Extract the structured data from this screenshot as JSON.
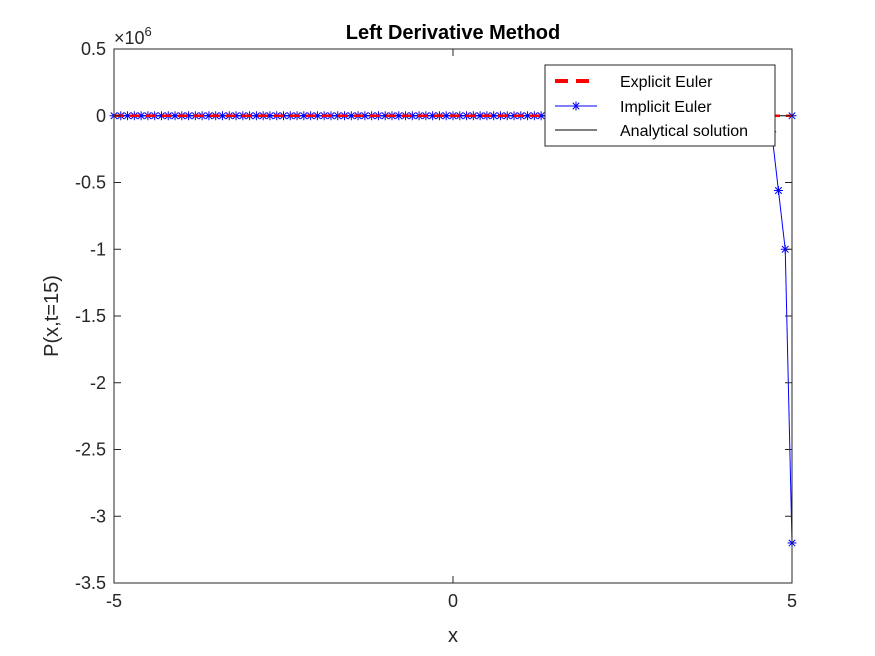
{
  "chart_data": {
    "type": "line",
    "title": "Left Derivative Method",
    "xlabel": "x",
    "ylabel": "P(x,t=15)",
    "scale_exponent_label": "×10",
    "scale_exponent_power": "6",
    "xlim": [
      -5,
      5
    ],
    "ylim": [
      -3.5,
      0.5
    ],
    "xticks": [
      -5,
      0,
      5
    ],
    "yticks": [
      0.5,
      0,
      -0.5,
      -1,
      -1.5,
      -2,
      -2.5,
      -3,
      -3.5
    ],
    "xtick_labels": [
      "-5",
      "0",
      "5"
    ],
    "ytick_labels": [
      "0.5",
      "0",
      "-0.5",
      "-1",
      "-1.5",
      "-2",
      "-2.5",
      "-3",
      "-3.5"
    ],
    "grid": false,
    "legend_position": "top-right",
    "series": [
      {
        "name": "Explicit Euler",
        "color": "#ff0000",
        "style": "dashed",
        "x": [
          -5,
          5
        ],
        "y": [
          0,
          0
        ]
      },
      {
        "name": "Implicit Euler",
        "color": "#0000ff",
        "style": "solid-asterisk",
        "x_range": [
          -5,
          4.9
        ],
        "x_step": 0.1,
        "y_tail": [
          {
            "x": 4.7,
            "y": -0.12
          },
          {
            "x": 4.8,
            "y": -0.56
          },
          {
            "x": 4.9,
            "y": -1.0
          },
          {
            "x": 5.0,
            "y": -3.2
          },
          {
            "x": 5.0,
            "y": 0
          }
        ]
      },
      {
        "name": "Analytical solution",
        "color": "#000000",
        "style": "solid",
        "x": [
          -5,
          5
        ],
        "y": [
          0,
          0
        ]
      }
    ]
  }
}
